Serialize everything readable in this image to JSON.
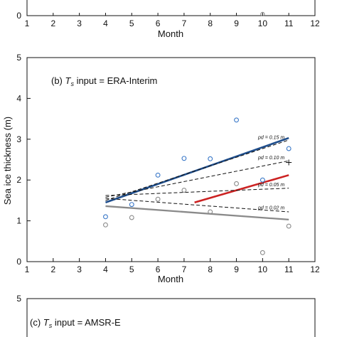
{
  "chart_data": [
    {
      "type": "scatter",
      "panel": "a (partial)",
      "xlabel": "Month",
      "xticks": [
        "1",
        "2",
        "3",
        "4",
        "5",
        "6",
        "7",
        "8",
        "9",
        "10",
        "11",
        "12"
      ],
      "xlim": [
        1,
        12
      ],
      "ylim": [
        0,
        5
      ],
      "yticks": [
        "0"
      ],
      "points": [
        {
          "x": 10,
          "y": 0.02
        }
      ],
      "colors": {
        "axis": "#111111",
        "grey": "#808080"
      }
    },
    {
      "type": "scatter",
      "panel": "b",
      "annotation": {
        "prefix": "(b) ",
        "ts": "T",
        "ts_sub": "s",
        "suffix": " input = ERA-Interim"
      },
      "xlabel": "Month",
      "ylabel": "Sea ice thickness (m)",
      "xticks": [
        "1",
        "2",
        "3",
        "4",
        "5",
        "6",
        "7",
        "8",
        "9",
        "10",
        "11",
        "12"
      ],
      "yticks": [
        "0",
        "1",
        "2",
        "3",
        "4",
        "5"
      ],
      "xlim": [
        1,
        12
      ],
      "ylim": [
        0,
        5
      ],
      "grid": false,
      "series": [
        {
          "name": "",
          "marker": "circle",
          "color": "#3a78c8",
          "points": [
            [
              4,
              1.1
            ],
            [
              5,
              1.4
            ],
            [
              6,
              2.12
            ],
            [
              7,
              2.53
            ],
            [
              8,
              2.52
            ],
            [
              9,
              3.47
            ],
            [
              10,
              2.0
            ],
            [
              11,
              2.77
            ]
          ]
        },
        {
          "name": "",
          "marker": "circle",
          "color": "#8a8a8a",
          "points": [
            [
              4,
              0.9
            ],
            [
              5,
              1.08
            ],
            [
              6,
              1.53
            ],
            [
              7,
              1.75
            ],
            [
              8,
              1.22
            ],
            [
              9,
              1.91
            ],
            [
              10,
              0.22
            ],
            [
              11,
              0.87
            ]
          ]
        }
      ],
      "lines": [
        {
          "style": "solid",
          "color": "#1f4e8c",
          "from": [
            4,
            1.45
          ],
          "to": [
            11,
            3.03
          ]
        },
        {
          "style": "solid",
          "color": "#8a8a8a",
          "from": [
            4,
            1.36
          ],
          "to": [
            11,
            1.03
          ]
        },
        {
          "style": "solid",
          "color": "#cc2222",
          "from": [
            7.4,
            1.45
          ],
          "to": [
            11,
            2.12
          ]
        },
        {
          "style": "dashed",
          "color": "#111111",
          "from": [
            4,
            1.5
          ],
          "to": [
            11,
            2.98
          ],
          "label": "pd = 0.15 m"
        },
        {
          "style": "dashed",
          "color": "#111111",
          "from": [
            4,
            1.58
          ],
          "to": [
            11,
            2.47
          ],
          "label": "pd = 0.10 m"
        },
        {
          "style": "dashed",
          "color": "#111111",
          "from": [
            4,
            1.62
          ],
          "to": [
            11,
            1.8
          ],
          "label": "pd = 0.05 m"
        },
        {
          "style": "dashed",
          "color": "#111111",
          "from": [
            4,
            1.55
          ],
          "to": [
            11,
            1.22
          ],
          "label": "pd = 0.02 m"
        }
      ],
      "plus_marker": {
        "x": 11,
        "y": 2.43
      }
    },
    {
      "type": "scatter",
      "panel": "c (partial)",
      "annotation": {
        "prefix": "(c) ",
        "ts": "T",
        "ts_sub": "s",
        "suffix": " input = AMSR-E"
      },
      "yticks": [
        "5"
      ],
      "xlim": [
        1,
        12
      ],
      "ylim": [
        0,
        5
      ]
    }
  ]
}
